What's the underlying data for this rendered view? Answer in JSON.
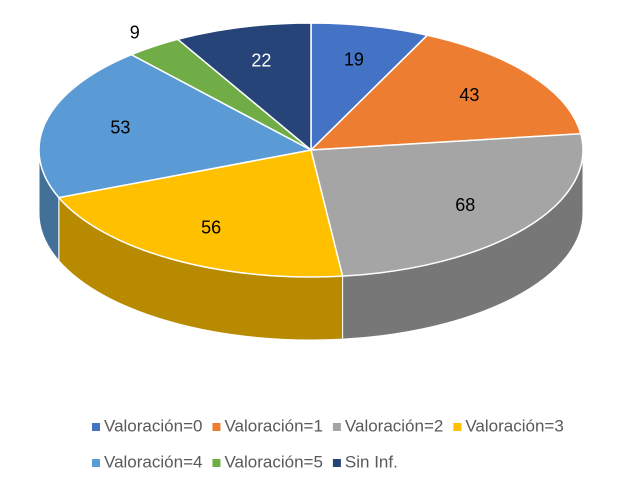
{
  "chart_data": {
    "type": "pie3d",
    "categories": [
      "Valoración=0",
      "Valoración=1",
      "Valoración=2",
      "Valoración=3",
      "Valoración=4",
      "Valoración=5",
      "Sin Inf."
    ],
    "values": [
      19,
      43,
      68,
      56,
      53,
      9,
      22
    ],
    "colors": [
      "#4472c4",
      "#ed7d31",
      "#a5a5a5",
      "#ffc000",
      "#5b9bd5",
      "#70ad47",
      "#264478"
    ],
    "legend": "bottom"
  }
}
